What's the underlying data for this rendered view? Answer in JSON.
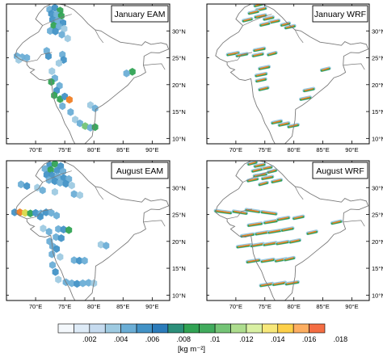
{
  "panels": [
    {
      "title": "January EAM",
      "model": "EAM",
      "month": "January"
    },
    {
      "title": "January WRF",
      "model": "WRF",
      "month": "January"
    },
    {
      "title": "August EAM",
      "model": "EAM",
      "month": "August"
    },
    {
      "title": "August WRF",
      "model": "WRF",
      "month": "August"
    }
  ],
  "axes": {
    "lat_ticks": [
      "30°N",
      "25°N",
      "20°N",
      "15°N",
      "10°N"
    ],
    "lat_values": [
      30,
      25,
      20,
      15,
      10
    ],
    "lon_ticks": [
      "70°E",
      "75°E",
      "80°E",
      "85°E",
      "90°E"
    ],
    "lon_values": [
      70,
      75,
      80,
      85,
      90
    ],
    "lon_range": [
      65,
      93
    ],
    "lat_range": [
      9,
      35
    ]
  },
  "colorbar": {
    "labels": [
      ".002",
      ".004",
      ".006",
      ".008",
      ".01",
      ".012",
      ".014",
      ".016",
      ".018"
    ],
    "units": "[kg m⁻²]",
    "colors": [
      "#f4f8fc",
      "#deebf7",
      "#c6dbef",
      "#9ecae1",
      "#6baed6",
      "#4292c6",
      "#2b7bba",
      "#2c8f7a",
      "#31a354",
      "#41ab5d",
      "#74c476",
      "#addd8e",
      "#d9f0a3",
      "#f7e87a",
      "#fdd049",
      "#fdae61",
      "#f46d43"
    ]
  },
  "colors": {
    "border": "#7a7a7a",
    "frame": "#000000",
    "orange": "#f07e24",
    "green": "#31a354",
    "blue": "#4a90c8"
  }
}
